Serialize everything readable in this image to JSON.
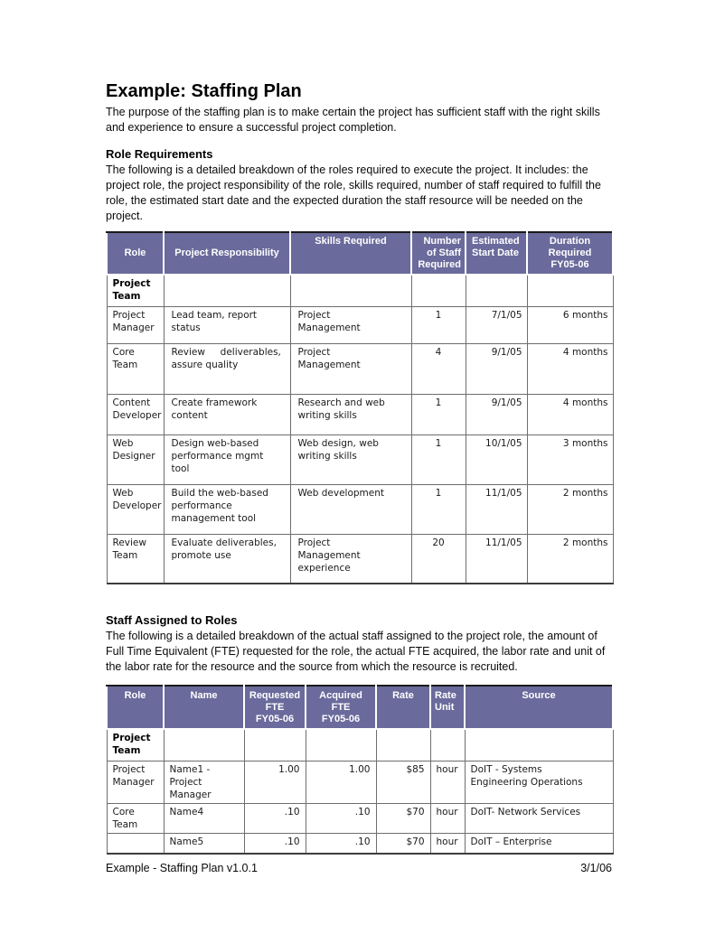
{
  "document": {
    "title": "Example: Staffing Plan",
    "intro": "The purpose of the staffing plan is to make certain the project has sufficient staff with the right skills and experience to ensure a successful project completion.",
    "footer_left": "Example - Staffing Plan v1.0.1",
    "footer_right": "3/1/06"
  },
  "colors": {
    "page_bg": "#ffffff",
    "table_header_bg": "#6a6a9c",
    "table_header_text": "#ffffff"
  },
  "role_requirements": {
    "heading": "Role Requirements",
    "description": "The following is a detailed breakdown of the roles required to execute the project. It includes: the project role, the project responsibility of the role, skills required, number of staff required to fulfill the role, the estimated start date and the expected duration the staff resource will be needed on the project.",
    "table": {
      "headers": [
        "Role",
        "Project Responsibility",
        "Skills Required",
        "Number\nof Staff\nRequired",
        "Estimated\nStart Date",
        "Duration\nRequired\nFY05-06"
      ],
      "rows": [
        [
          "Project\nTeam",
          "",
          "",
          "",
          "",
          ""
        ],
        [
          "Project\nManager",
          "Lead team, report\nstatus",
          "Project\nManagement",
          "1",
          "7/1/05",
          "6 months"
        ],
        [
          "Core Team",
          "Review     deliverables,\nassure quality",
          "Project\nManagement",
          "4",
          "9/1/05",
          "4 months"
        ],
        [
          "Content\nDeveloper",
          "Create framework\ncontent",
          "Research and web\nwriting skills",
          "1",
          "9/1/05",
          "4 months"
        ],
        [
          "Web\nDesigner",
          "Design web-based\nperformance mgmt\ntool",
          "Web design, web\nwriting skills",
          "1",
          "10/1/05",
          "3 months"
        ],
        [
          "Web\nDeveloper",
          "Build the web-based\nperformance\nmanagement tool",
          "Web development",
          "1",
          "11/1/05",
          "2 months"
        ],
        [
          "Review\nTeam",
          "Evaluate deliverables,\npromote use",
          "Project\nManagement\nexperience",
          "20",
          "11/1/05",
          "2 months"
        ]
      ]
    }
  },
  "staff_assigned": {
    "heading": "Staff Assigned to Roles",
    "description": "The following is a detailed breakdown of the actual staff assigned to the project role, the amount of Full Time Equivalent (FTE) requested for the role, the actual FTE acquired, the labor rate and unit of the labor rate for the resource and the source from which the resource is recruited.",
    "table": {
      "headers": [
        "Role",
        "Name",
        "Requested\nFTE\nFY05-06",
        "Acquired\nFTE\nFY05-06",
        "Rate",
        "Rate\nUnit",
        "Source"
      ],
      "rows": [
        [
          "Project\nTeam",
          "",
          "",
          "",
          "",
          "",
          ""
        ],
        [
          "Project\nManager",
          "Name1 -\nProject\nManager",
          "1.00",
          "1.00",
          "$85",
          "hour",
          "DoIT - Systems\nEngineering Operations"
        ],
        [
          "Core Team",
          "Name4",
          ".10",
          ".10",
          "$70",
          "hour",
          "DoIT- Network Services"
        ],
        [
          "",
          "Name5",
          ".10",
          ".10",
          "$70",
          "hour",
          "DoIT – Enterprise"
        ]
      ]
    }
  }
}
